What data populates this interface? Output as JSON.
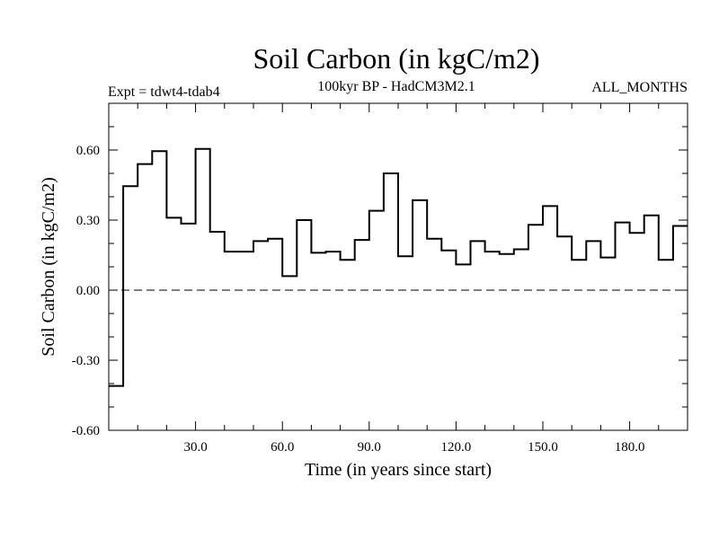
{
  "chart_data": {
    "type": "line",
    "style": "step",
    "title": "Soil Carbon (in kgC/m2)",
    "subtitle": "100kyr BP - HadCM3M2.1",
    "left_label": "Expt = tdwt4-tdab4",
    "right_label": "ALL_MONTHS",
    "xlabel": "Time (in years since start)",
    "ylabel": "Soil Carbon (in kgC/m2)",
    "xlim": [
      0,
      200
    ],
    "ylim": [
      -0.6,
      0.8
    ],
    "x_ticks": [
      30,
      60,
      90,
      120,
      150,
      180
    ],
    "x_tick_labels": [
      "30.0",
      "60.0",
      "90.0",
      "120.0",
      "150.0",
      "180.0"
    ],
    "y_ticks": [
      -0.6,
      -0.3,
      0.0,
      0.3,
      0.6
    ],
    "y_tick_labels": [
      "-0.60",
      "-0.30",
      "0.00",
      "0.30",
      "0.60"
    ],
    "reference_line": {
      "y": 0.0,
      "style": "dashed"
    },
    "step_width": 5,
    "series": [
      {
        "name": "tdwt4-tdab4",
        "x": [
          0,
          5,
          10,
          15,
          20,
          25,
          30,
          35,
          40,
          45,
          50,
          55,
          60,
          65,
          70,
          75,
          80,
          85,
          90,
          95,
          100,
          105,
          110,
          115,
          120,
          125,
          130,
          135,
          140,
          145,
          150,
          155,
          160,
          165,
          170,
          175,
          180,
          185,
          190,
          195
        ],
        "values": [
          -0.41,
          0.445,
          0.54,
          0.595,
          0.31,
          0.285,
          0.605,
          0.25,
          0.165,
          0.165,
          0.21,
          0.22,
          0.06,
          0.3,
          0.16,
          0.165,
          0.13,
          0.215,
          0.34,
          0.5,
          0.145,
          0.385,
          0.22,
          0.17,
          0.11,
          0.21,
          0.165,
          0.155,
          0.175,
          0.28,
          0.36,
          0.23,
          0.13,
          0.21,
          0.14,
          0.29,
          0.245,
          0.32,
          0.13,
          0.275
        ]
      }
    ]
  }
}
